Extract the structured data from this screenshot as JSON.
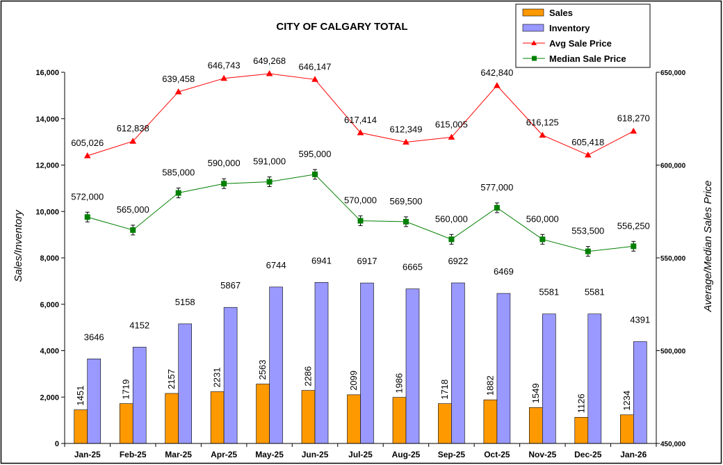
{
  "chart_data": {
    "type": "bar+line",
    "title": "CITY OF CALGARY TOTAL",
    "categories": [
      "Jan-25",
      "Feb-25",
      "Mar-25",
      "Apr-25",
      "May-25",
      "Jun-25",
      "Jul-25",
      "Aug-25",
      "Sep-25",
      "Oct-25",
      "Nov-25",
      "Dec-25",
      "Jan-26"
    ],
    "y_left": {
      "label": "Sales/Inventory",
      "range": [
        0,
        16000
      ],
      "ticks": [
        "0",
        "2,000",
        "4,000",
        "6,000",
        "8,000",
        "10,000",
        "12,000",
        "14,000",
        "16,000"
      ]
    },
    "y_right": {
      "label": "Average/Median Sales Price",
      "range": [
        450000,
        650000
      ],
      "ticks": [
        "450,000",
        "500,000",
        "550,000",
        "600,000",
        "650,000"
      ]
    },
    "series": [
      {
        "name": "Sales",
        "kind": "bar",
        "axis": "left",
        "color": "#FF9900",
        "values": [
          1451,
          1719,
          2157,
          2231,
          2563,
          2286,
          2099,
          1986,
          1718,
          1882,
          1549,
          1126,
          1234
        ],
        "labels": [
          "1451",
          "1719",
          "2157",
          "2231",
          "2563",
          "2286",
          "2099",
          "1986",
          "1718",
          "1882",
          "1549",
          "1126",
          "1234"
        ]
      },
      {
        "name": "Inventory",
        "kind": "bar",
        "axis": "left",
        "color": "#9999FF",
        "values": [
          3646,
          4152,
          5158,
          5867,
          6744,
          6941,
          6917,
          6665,
          6922,
          6469,
          5581,
          5581,
          4391
        ],
        "labels": [
          "3646",
          "4152",
          "5158",
          "5867",
          "6744",
          "6941",
          "6917",
          "6665",
          "6922",
          "6469",
          "5581",
          "5581",
          "4391"
        ]
      },
      {
        "name": "Avg Sale Price",
        "kind": "line",
        "axis": "right",
        "color": "#FF0000",
        "marker": "triangle",
        "values": [
          605026,
          612838,
          639458,
          646743,
          649268,
          646147,
          617414,
          612349,
          615005,
          642840,
          616125,
          605418,
          618270
        ],
        "labels": [
          "605,026",
          "612,838",
          "639,458",
          "646,743",
          "649,268",
          "646,147",
          "617,414",
          "612,349",
          "615,005",
          "642,840",
          "616,125",
          "605,418",
          "618,270"
        ]
      },
      {
        "name": "Median Sale Price",
        "kind": "line",
        "axis": "right",
        "color": "#008000",
        "marker": "square",
        "values": [
          572000,
          565000,
          585000,
          590000,
          591000,
          595000,
          570000,
          569500,
          560000,
          577000,
          560000,
          553500,
          556250
        ],
        "labels": [
          "572,000",
          "565,000",
          "585,000",
          "590,000",
          "591,000",
          "595,000",
          "570,000",
          "569,500",
          "560,000",
          "577,000",
          "560,000",
          "553,500",
          "556,250"
        ]
      }
    ],
    "legend": {
      "position": "top-right",
      "items": [
        "Sales",
        "Inventory",
        "Avg Sale Price",
        "Median Sale Price"
      ]
    }
  }
}
